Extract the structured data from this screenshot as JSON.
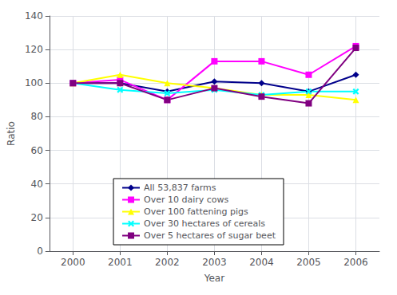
{
  "chart_data": {
    "type": "line",
    "x": [
      2000,
      2001,
      2002,
      2003,
      2004,
      2005,
      2006
    ],
    "series": [
      {
        "name": "All 53,837 farms",
        "color": "#00008B",
        "marker": "diamond",
        "values": [
          100,
          100,
          95,
          101,
          100,
          95,
          105
        ]
      },
      {
        "name": "Over 10 dairy cows",
        "color": "#FF00FF",
        "marker": "square",
        "values": [
          100,
          102,
          90,
          113,
          113,
          105,
          122
        ]
      },
      {
        "name": "Over 100 fattening pigs",
        "color": "#FFFF00",
        "marker": "triangle",
        "values": [
          100,
          105,
          100,
          97,
          93,
          93,
          90
        ]
      },
      {
        "name": "Over 30 hectares of cereals",
        "color": "#00FFFF",
        "marker": "x",
        "values": [
          100,
          96,
          94,
          96,
          93,
          95,
          95
        ]
      },
      {
        "name": "Over 5 hectares of sugar beet",
        "color": "#800080",
        "marker": "square",
        "values": [
          100,
          100,
          90,
          97,
          92,
          88,
          121
        ]
      }
    ],
    "xlabel": "Year",
    "ylabel": "Ratio",
    "xlim": [
      1999.5,
      2006.5
    ],
    "xticks": [
      2000,
      2001,
      2002,
      2003,
      2004,
      2005,
      2006
    ],
    "ylim": [
      0,
      140
    ],
    "yticks": [
      0,
      20,
      40,
      60,
      80,
      100,
      120,
      140
    ],
    "grid": true,
    "legend": "bottom"
  }
}
